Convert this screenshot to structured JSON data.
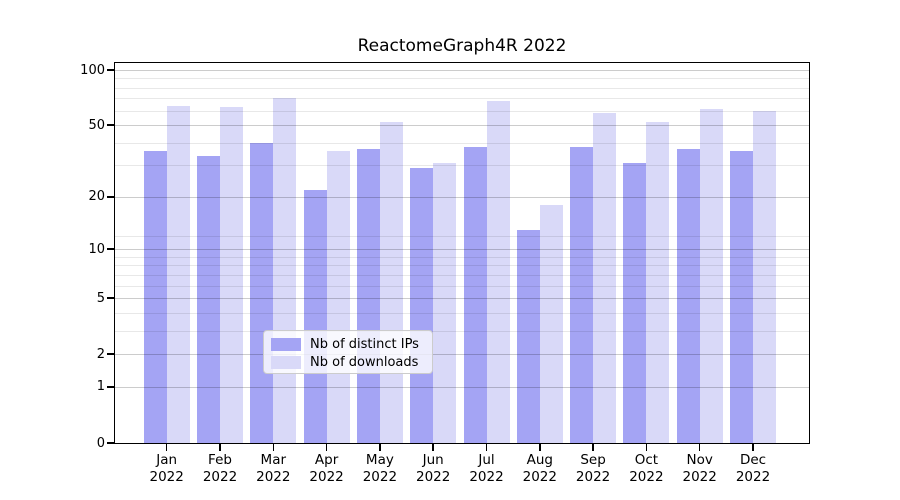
{
  "chart_data": {
    "type": "bar",
    "title": "ReactomeGraph4R 2022",
    "xlabel": "",
    "ylabel": "",
    "scale": "log1p",
    "grid": true,
    "legend_position": "lower center",
    "x_categories": [
      "Jan",
      "Feb",
      "Mar",
      "Apr",
      "May",
      "Jun",
      "Jul",
      "Aug",
      "Sep",
      "Oct",
      "Nov",
      "Dec"
    ],
    "x_year": "2022",
    "series": [
      {
        "name": "Nb of distinct IPs",
        "color": "#a4a4f4",
        "values": [
          36,
          34,
          40,
          22,
          37,
          29,
          38,
          13,
          38,
          31,
          37,
          36
        ]
      },
      {
        "name": "Nb of downloads",
        "color": "#d9d9f8",
        "values": [
          64,
          63,
          70,
          36,
          52,
          31,
          68,
          18,
          58,
          52,
          61,
          60
        ]
      }
    ],
    "yticks": [
      0,
      1,
      2,
      5,
      10,
      20,
      50,
      100
    ],
    "minor_gridlines": [
      3,
      4,
      6,
      7,
      8,
      9,
      12,
      30,
      40,
      60,
      70,
      80,
      90
    ],
    "ylim": [
      0,
      110
    ]
  },
  "style_colors": {
    "grid_major": "rgba(0,0,0,0.20)",
    "grid_minor": "rgba(0,0,0,0.09)",
    "frame": "#000000",
    "legend_border": "#cccccc"
  }
}
